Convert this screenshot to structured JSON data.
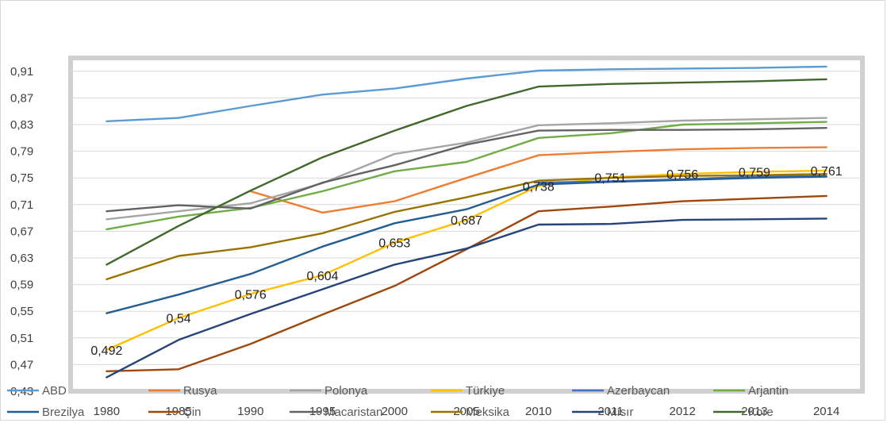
{
  "chart_data": {
    "type": "line",
    "categories": [
      "1980",
      "1985",
      "1990",
      "1995",
      "2000",
      "2005",
      "2010",
      "2011",
      "2012",
      "2013",
      "2014"
    ],
    "ylim": [
      0.43,
      0.93
    ],
    "y_ticks": [
      "0,43",
      "0,47",
      "0,51",
      "0,55",
      "0,59",
      "0,63",
      "0,67",
      "0,71",
      "0,75",
      "0,79",
      "0,83",
      "0,87",
      "0,91"
    ],
    "grid": true,
    "legend_position": "bottom",
    "series": [
      {
        "name": "ABD",
        "color": "#5B9BD5",
        "values": [
          0.835,
          0.84,
          0.858,
          0.875,
          0.884,
          0.899,
          0.911,
          0.913,
          0.914,
          0.915,
          0.917
        ]
      },
      {
        "name": "Rusya",
        "color": "#ED7D31",
        "values": [
          null,
          null,
          0.73,
          0.698,
          0.715,
          0.75,
          0.784,
          0.789,
          0.793,
          0.795,
          0.796
        ]
      },
      {
        "name": "Polonya",
        "color": "#A5A5A5",
        "values": [
          0.688,
          0.7,
          0.712,
          0.742,
          0.786,
          0.803,
          0.829,
          0.832,
          0.836,
          0.838,
          0.84
        ]
      },
      {
        "name": "Türkiye",
        "color": "#FFC000",
        "values": [
          0.492,
          0.54,
          0.576,
          0.604,
          0.653,
          0.687,
          0.738,
          0.751,
          0.756,
          0.759,
          0.761
        ]
      },
      {
        "name": "Azerbaycan",
        "color": "#4472C4",
        "values": [
          null,
          null,
          null,
          null,
          null,
          null,
          0.743,
          0.745,
          0.748,
          0.752,
          0.753
        ]
      },
      {
        "name": "Arjantin",
        "color": "#70AD47",
        "values": [
          0.673,
          0.692,
          0.705,
          0.73,
          0.76,
          0.774,
          0.81,
          0.817,
          0.83,
          0.832,
          0.834
        ]
      },
      {
        "name": "Brezilya",
        "color": "#255E91",
        "values": [
          0.547,
          0.575,
          0.606,
          0.647,
          0.682,
          0.703,
          0.74,
          0.744,
          0.747,
          0.75,
          0.752
        ]
      },
      {
        "name": "Çin",
        "color": "#9E480E",
        "values": [
          0.46,
          0.463,
          0.501,
          0.545,
          0.588,
          0.643,
          0.7,
          0.707,
          0.715,
          0.719,
          0.723
        ]
      },
      {
        "name": "Macaristan",
        "color": "#636363",
        "values": [
          0.7,
          0.709,
          0.704,
          0.743,
          0.769,
          0.8,
          0.821,
          0.822,
          0.822,
          0.823,
          0.825
        ]
      },
      {
        "name": "Meksika",
        "color": "#997300",
        "values": [
          0.598,
          0.633,
          0.646,
          0.667,
          0.699,
          0.721,
          0.746,
          0.75,
          0.753,
          0.754,
          0.756
        ]
      },
      {
        "name": "Mısır",
        "color": "#264478",
        "values": [
          0.451,
          0.507,
          0.546,
          0.583,
          0.62,
          0.644,
          0.68,
          0.681,
          0.687,
          0.688,
          0.689
        ]
      },
      {
        "name": "Kore",
        "color": "#43682B",
        "values": [
          0.62,
          0.678,
          0.731,
          0.781,
          0.821,
          0.858,
          0.887,
          0.891,
          0.893,
          0.895,
          0.898
        ]
      }
    ],
    "data_labels": {
      "series": "Türkiye",
      "labels": [
        "0,492",
        "0,54",
        "0,576",
        "0,604",
        "0,653",
        "0,687",
        "0,738",
        "0,751",
        "0,756",
        "0,759",
        "0,761"
      ]
    }
  }
}
